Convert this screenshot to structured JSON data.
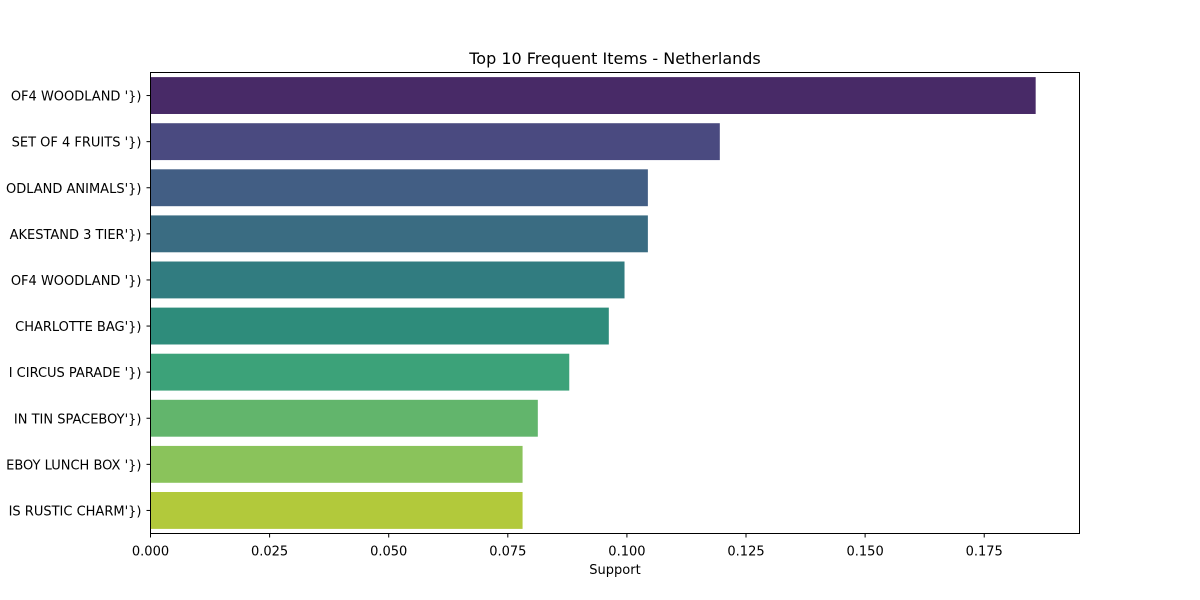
{
  "chart_data": {
    "type": "bar",
    "orientation": "horizontal",
    "title": "Top 10 Frequent Items - Netherlands",
    "xlabel": "Support",
    "ylabel": "",
    "xlim": [
      0,
      0.195
    ],
    "xticks": [
      "0.000",
      "0.025",
      "0.050",
      "0.075",
      "0.100",
      "0.125",
      "0.150",
      "0.175"
    ],
    "grid": false,
    "legend": "none",
    "categories": [
      "OF4 WOODLAND '})",
      "SET OF 4 FRUITS '})",
      "ODLAND ANIMALS'})",
      "AKESTAND 3 TIER'})",
      "OF4 WOODLAND '})",
      "CHARLOTTE BAG'})",
      "I CIRCUS PARADE '})",
      "IN TIN SPACEBOY'})",
      "EBOY LUNCH BOX '})",
      "IS RUSTIC CHARM'})"
    ],
    "values": [
      0.1858,
      0.1195,
      0.1044,
      0.1044,
      0.0995,
      0.0962,
      0.0879,
      0.0813,
      0.0781,
      0.0781
    ],
    "colors": [
      "#482a67",
      "#4a4a80",
      "#425e84",
      "#3a6c82",
      "#317c80",
      "#2e8c7b",
      "#3ca279",
      "#62b56c",
      "#8ac35b",
      "#b2c93b"
    ]
  }
}
